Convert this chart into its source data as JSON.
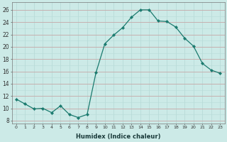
{
  "x": [
    0,
    1,
    2,
    3,
    4,
    5,
    6,
    7,
    8,
    9,
    10,
    11,
    12,
    13,
    14,
    15,
    16,
    17,
    18,
    19,
    20,
    21,
    22,
    23
  ],
  "y": [
    11.5,
    10.7,
    9.9,
    10.0,
    9.3,
    10.4,
    9.0,
    8.5,
    9.0,
    15.8,
    20.5,
    21.9,
    23.1,
    24.8,
    26.0,
    26.0,
    24.2,
    24.1,
    23.2,
    21.4,
    20.1,
    17.3,
    16.2,
    15.7
  ],
  "line_color": "#1a7a6e",
  "marker": "D",
  "marker_size": 2.2,
  "bg_color": "#cceae7",
  "grid_color_major": "#c8a8a8",
  "grid_color_minor": "#b8dbd8",
  "xlabel": "Humidex (Indice chaleur)",
  "ytick_labels": [
    "8",
    "10",
    "12",
    "14",
    "16",
    "18",
    "20",
    "22",
    "24",
    "26"
  ],
  "ytick_values": [
    8,
    10,
    12,
    14,
    16,
    18,
    20,
    22,
    24,
    26
  ],
  "ylim": [
    7.5,
    27.2
  ],
  "xlim": [
    -0.5,
    23.5
  ]
}
